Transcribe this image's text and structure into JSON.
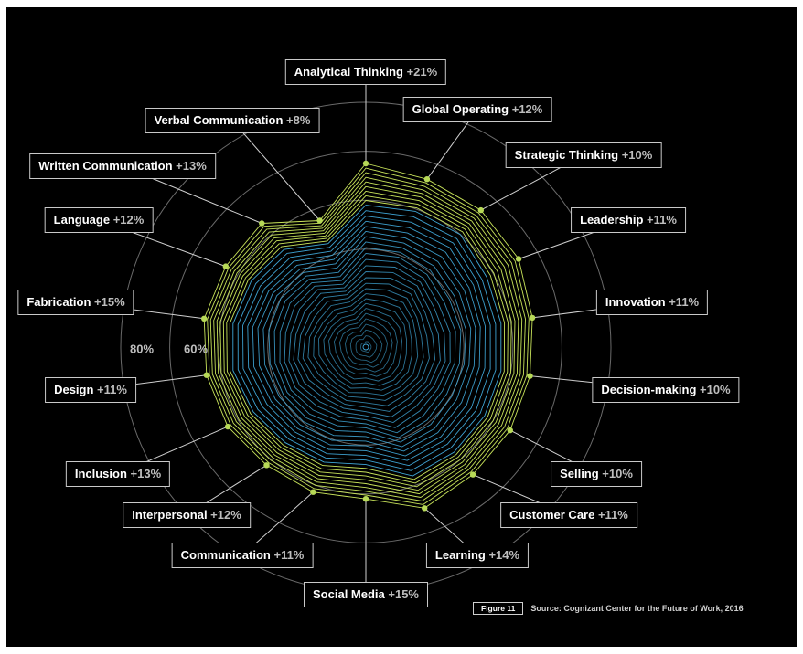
{
  "chart_data": {
    "type": "radar",
    "series": [
      {
        "values": [
          21,
          12,
          10,
          11,
          11,
          10,
          10,
          11,
          14,
          15,
          11,
          12,
          13,
          11,
          15,
          12,
          13,
          8
        ]
      }
    ],
    "categories": [
      {
        "name": "Analytical Thinking",
        "delta": "+21%"
      },
      {
        "name": "Global Operating",
        "delta": "+12%"
      },
      {
        "name": "Strategic Thinking",
        "delta": "+10%"
      },
      {
        "name": "Leadership",
        "delta": "+11%"
      },
      {
        "name": "Innovation",
        "delta": "+11%"
      },
      {
        "name": "Decision-making",
        "delta": "+10%"
      },
      {
        "name": "Selling",
        "delta": "+10%"
      },
      {
        "name": "Customer Care",
        "delta": "+11%"
      },
      {
        "name": "Learning",
        "delta": "+14%"
      },
      {
        "name": "Social Media",
        "delta": "+15%"
      },
      {
        "name": "Communication",
        "delta": "+11%"
      },
      {
        "name": "Interpersonal",
        "delta": "+12%"
      },
      {
        "name": "Inclusion",
        "delta": "+13%"
      },
      {
        "name": "Design",
        "delta": "+11%"
      },
      {
        "name": "Fabrication",
        "delta": "+15%"
      },
      {
        "name": "Language",
        "delta": "+12%"
      },
      {
        "name": "Written Communication",
        "delta": "+13%"
      },
      {
        "name": "Verbal Communication",
        "delta": "+8%"
      }
    ],
    "ring_labels": [
      "80%",
      "60%"
    ],
    "outer_extent": [
      0.75,
      0.73,
      0.73,
      0.72,
      0.69,
      0.68,
      0.68,
      0.68,
      0.7,
      0.62,
      0.63,
      0.63,
      0.65,
      0.66,
      0.67,
      0.66,
      0.66,
      0.55
    ],
    "inner_extent": [
      0.58,
      0.59,
      0.6,
      0.57,
      0.56,
      0.56,
      0.56,
      0.56,
      0.56,
      0.48,
      0.5,
      0.51,
      0.53,
      0.55,
      0.55,
      0.54,
      0.52,
      0.45
    ],
    "colors": {
      "background": "#000000",
      "base_lines": "#3fa6d6",
      "growth_lines": "#c8e35a",
      "marker": "#b7d957",
      "grid": "#6a6a6a",
      "leader": "#cfcfcf"
    }
  },
  "footer": {
    "figure_label": "Figure 11",
    "source": "Source: Cognizant Center for the Future of Work, 2016"
  }
}
